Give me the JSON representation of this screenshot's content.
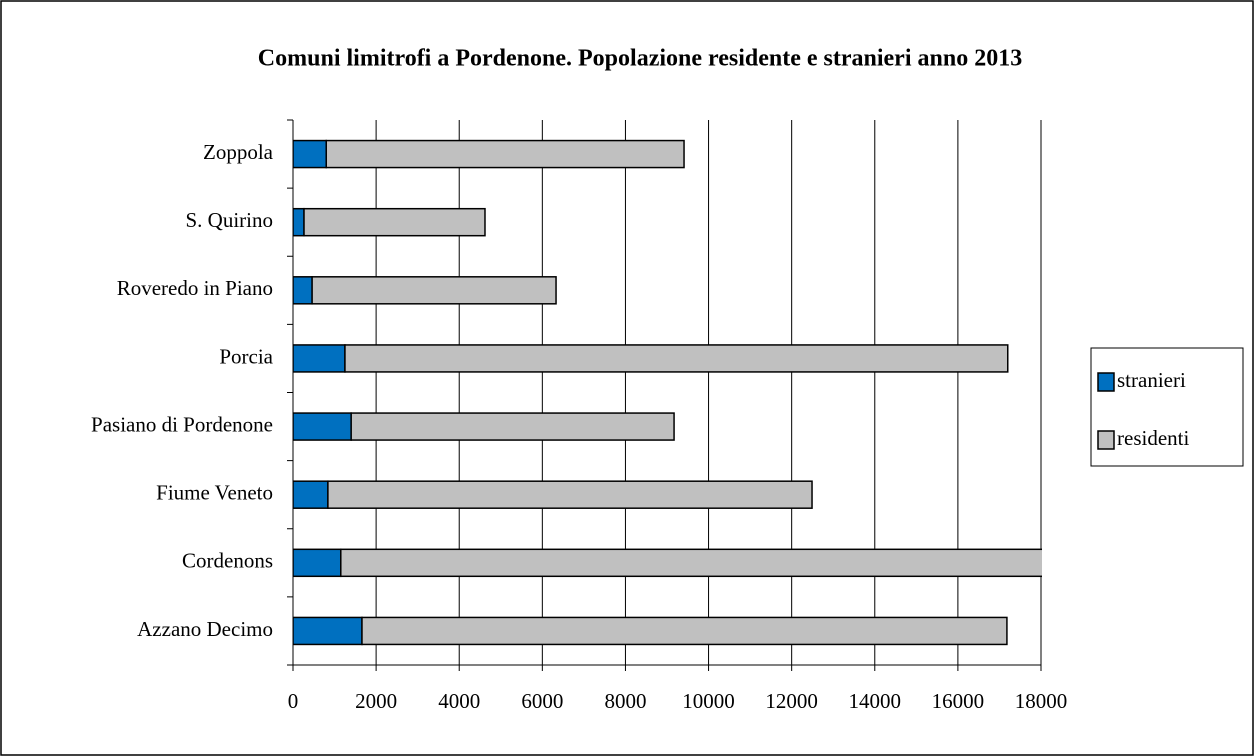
{
  "chart_data": {
    "type": "stacked-bar-horizontal",
    "title": "Comuni limitrofi a Pordenone. Popolazione residente e stranieri anno  2013",
    "categories": [
      "Azzano Decimo",
      "Cordenons",
      "Fiume Veneto",
      "Pasiano di Pordenone",
      "Porcia",
      "Roveredo in Piano",
      "S. Quirino",
      "Zoppola"
    ],
    "series": [
      {
        "name": "stranieri",
        "color": "#0070c0",
        "values": [
          1660,
          1150,
          840,
          1400,
          1250,
          460,
          265,
          800
        ]
      },
      {
        "name": "residenti",
        "color": "#c0c0c0",
        "values": [
          15520,
          16950,
          11650,
          7770,
          15950,
          5870,
          4355,
          8610
        ]
      }
    ],
    "xlim": [
      0,
      18000
    ],
    "xticks": [
      0,
      2000,
      4000,
      6000,
      8000,
      10000,
      12000,
      14000,
      16000,
      18000
    ],
    "grid": true,
    "legend": "right"
  }
}
